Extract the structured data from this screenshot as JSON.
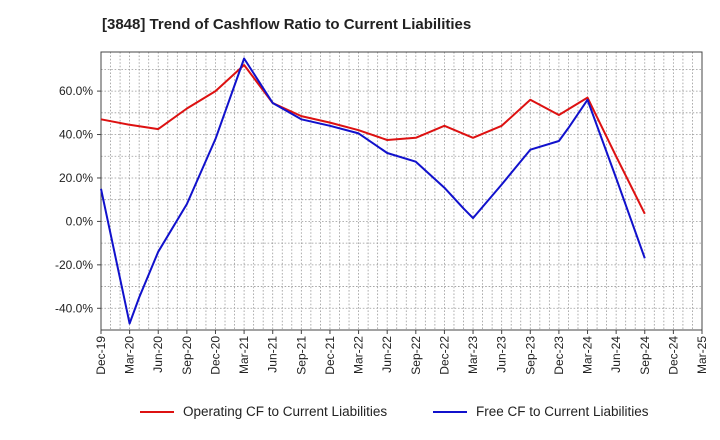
{
  "title": "[3848]  Trend of Cashflow Ratio to Current Liabilities",
  "chart_data": {
    "type": "line",
    "x_ticks": [
      "Dec-19",
      "Mar-20",
      "Jun-20",
      "Sep-20",
      "Dec-20",
      "Mar-21",
      "Jun-21",
      "Sep-21",
      "Dec-21",
      "Mar-22",
      "Jun-22",
      "Sep-22",
      "Dec-22",
      "Mar-23",
      "Jun-23",
      "Sep-23",
      "Dec-23",
      "Mar-24",
      "Jun-24",
      "Sep-24",
      "Dec-24",
      "Mar-25"
    ],
    "y_ticks": [
      "60.0%",
      "40.0%",
      "20.0%",
      "0.0%",
      "-20.0%",
      "-40.0%"
    ],
    "y_tick_values": [
      60,
      40,
      20,
      0,
      -20,
      -40
    ],
    "ylim": [
      -50,
      78
    ],
    "grid": true,
    "legend_position": "bottom",
    "series": [
      {
        "name": "Operating CF to Current Liabilities",
        "color": "#dd1111",
        "x": [
          "Dec-19",
          "Mar-20",
          "Jun-20",
          "Sep-20",
          "Dec-20",
          "Mar-21",
          "Jun-21",
          "Sep-21",
          "Dec-21",
          "Mar-22",
          "Jun-22",
          "Sep-22",
          "Dec-22",
          "Mar-23",
          "Jun-23",
          "Sep-23",
          "Dec-23",
          "Mar-24",
          "Jun-24",
          "Sep-24"
        ],
        "values": [
          47,
          44.5,
          42.5,
          52,
          60,
          72,
          54.5,
          48.5,
          45.5,
          42,
          37.5,
          38.5,
          44,
          38.5,
          44,
          56,
          49,
          57,
          30,
          3.5
        ]
      },
      {
        "name": "Free CF to Current Liabilities",
        "color": "#1111cc",
        "x": [
          "Dec-19",
          "Mar-20",
          "Apr-20",
          "Jun-20",
          "Sep-20",
          "Dec-20",
          "Mar-21",
          "Jun-21",
          "Sep-21",
          "Dec-21",
          "Mar-22",
          "Jun-22",
          "Sep-22",
          "Dec-22",
          "Feb-23",
          "Mar-23",
          "Jun-23",
          "Sep-23",
          "Dec-23",
          "Jan-24",
          "Mar-24",
          "Jun-24",
          "Sep-24"
        ],
        "values": [
          15,
          -47,
          -35,
          -14,
          8,
          38,
          75,
          54.5,
          47,
          44,
          40.5,
          31.5,
          27.5,
          15.5,
          6,
          1.5,
          17,
          33,
          37,
          43,
          56,
          20,
          -17
        ]
      }
    ]
  }
}
